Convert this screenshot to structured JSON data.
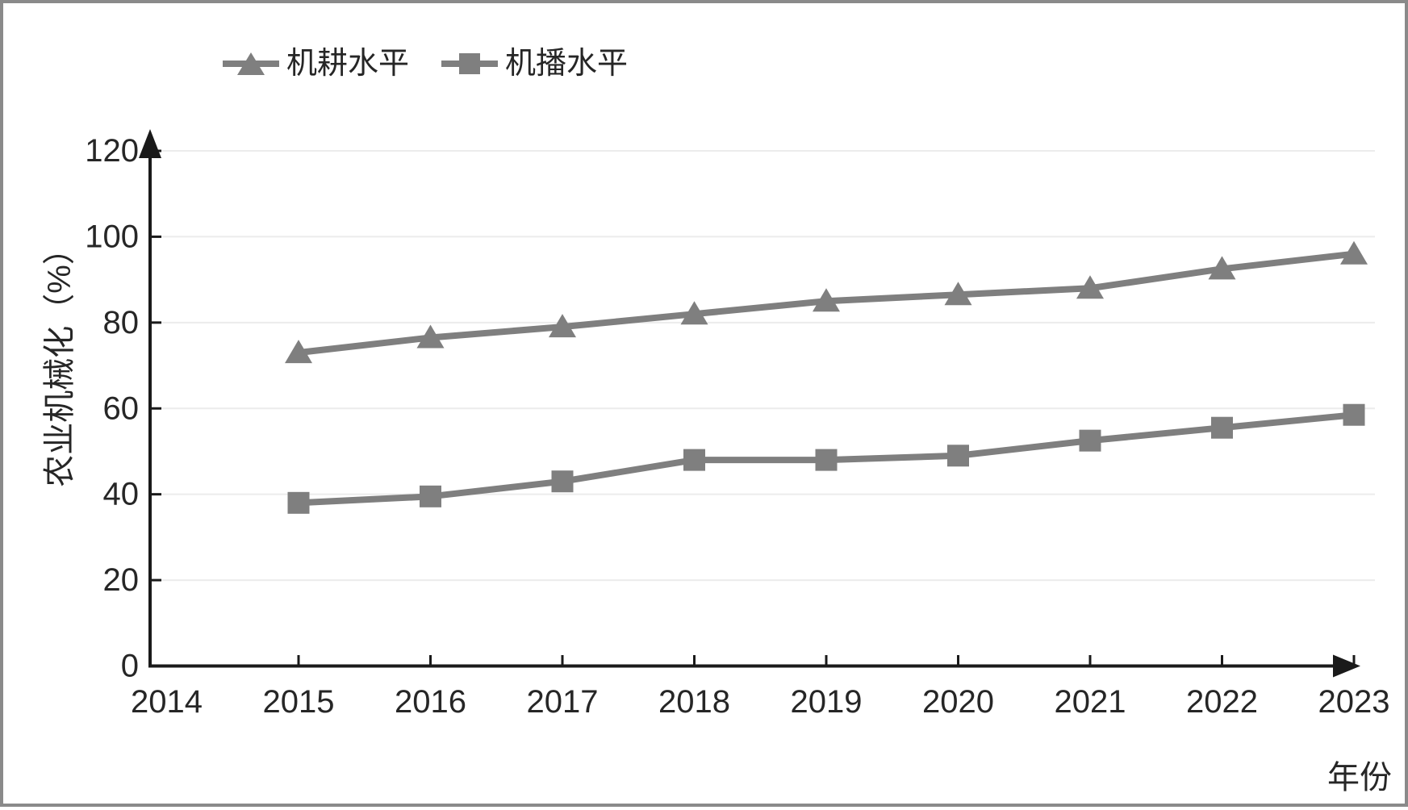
{
  "frame": {
    "border_color": "#8a8a8a",
    "background": "#ffffff"
  },
  "legend": {
    "items": [
      {
        "label": "机耕水平",
        "marker": "triangle"
      },
      {
        "label": "机播水平",
        "marker": "square"
      }
    ]
  },
  "chart_data": {
    "type": "line",
    "title": "",
    "xlabel": "年份",
    "ylabel": "农业机械化（%）",
    "x_axis_labels": [
      "2014",
      "2015",
      "2016",
      "2017",
      "2018",
      "2019",
      "2020",
      "2021",
      "2022",
      "2023"
    ],
    "categories": [
      2015,
      2016,
      2017,
      2018,
      2019,
      2020,
      2021,
      2022,
      2023
    ],
    "series": [
      {
        "name": "机耕水平",
        "marker": "triangle",
        "values": [
          73,
          76.5,
          79,
          82,
          85,
          86.5,
          88,
          92.5,
          96
        ]
      },
      {
        "name": "机播水平",
        "marker": "square",
        "values": [
          38,
          39.5,
          43,
          48,
          48,
          49,
          52.5,
          55.5,
          58.5
        ]
      }
    ],
    "ylim": [
      0,
      120
    ],
    "ytick_step": 20,
    "grid": true,
    "legend_position": "top-left",
    "axis_arrows": true,
    "colors": {
      "series": "#7f7f7f",
      "grid": "#ececec",
      "axis": "#1a1a1a",
      "text": "#262626"
    }
  }
}
